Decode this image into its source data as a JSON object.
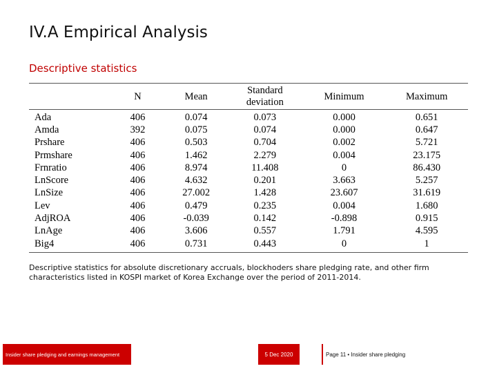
{
  "slide": {
    "title": "IV.A Empirical Analysis",
    "subtitle": "Descriptive statistics"
  },
  "table": {
    "headers": {
      "name": "",
      "n": "N",
      "mean": "Mean",
      "sd_line1": "Standard",
      "sd_line2": "deviation",
      "min": "Minimum",
      "max": "Maximum"
    },
    "rows": [
      {
        "name": "Ada",
        "n": "406",
        "mean": "0.074",
        "sd": "0.073",
        "min": "0.000",
        "max": "0.651"
      },
      {
        "name": "Amda",
        "n": "392",
        "mean": "0.075",
        "sd": "0.074",
        "min": "0.000",
        "max": "0.647"
      },
      {
        "name": "Prshare",
        "n": "406",
        "mean": "0.503",
        "sd": "0.704",
        "min": "0.002",
        "max": "5.721"
      },
      {
        "name": "Prmshare",
        "n": "406",
        "mean": "1.462",
        "sd": "2.279",
        "min": "0.004",
        "max": "23.175"
      },
      {
        "name": "Frnratio",
        "n": "406",
        "mean": "8.974",
        "sd": "11.408",
        "min": "0",
        "max": "86.430"
      },
      {
        "name": "LnScore",
        "n": "406",
        "mean": "4.632",
        "sd": "0.201",
        "min": "3.663",
        "max": "5.257"
      },
      {
        "name": "LnSize",
        "n": "406",
        "mean": "27.002",
        "sd": "1.428",
        "min": "23.607",
        "max": "31.619"
      },
      {
        "name": "Lev",
        "n": "406",
        "mean": "0.479",
        "sd": "0.235",
        "min": "0.004",
        "max": "1.680"
      },
      {
        "name": "AdjROA",
        "n": "406",
        "mean": "-0.039",
        "sd": "0.142",
        "min": "-0.898",
        "max": "0.915"
      },
      {
        "name": "LnAge",
        "n": "406",
        "mean": "3.606",
        "sd": "0.557",
        "min": "1.791",
        "max": "4.595"
      },
      {
        "name": "Big4",
        "n": "406",
        "mean": "0.731",
        "sd": "0.443",
        "min": "0",
        "max": "1"
      }
    ]
  },
  "caption": "Descriptive statistics for absolute discretionary accruals, blockhoders share pledging rate, and other firm characteristics listed in KOSPI market of Korea Exchange over the period of 2011-2014.",
  "footer": {
    "left_text": "Insider share pledging and earnings management",
    "date": "5 Dec 2020",
    "page": "Page 11 • Insider share pledging"
  },
  "colors": {
    "accent": "#cc0000",
    "subtitle": "#c00000"
  }
}
